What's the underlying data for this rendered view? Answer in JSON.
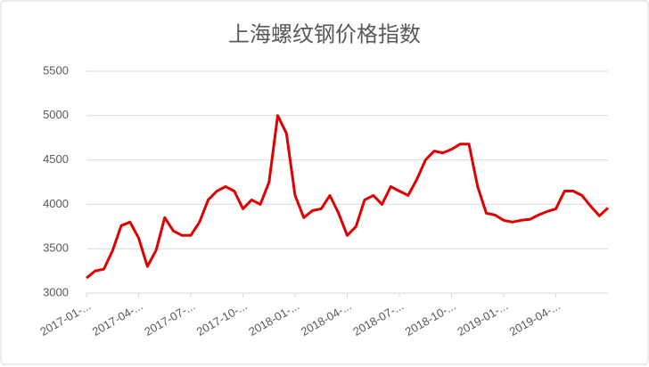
{
  "chart_data": {
    "type": "line",
    "title": "上海螺纹钢价格指数",
    "categories": [
      "2017-01-...",
      null,
      null,
      null,
      null,
      null,
      "2017-04-...",
      null,
      null,
      null,
      null,
      null,
      "2017-07-...",
      null,
      null,
      null,
      null,
      null,
      "2017-10-...",
      null,
      null,
      null,
      null,
      null,
      "2018-01-...",
      null,
      null,
      null,
      null,
      null,
      "2018-04-...",
      null,
      null,
      null,
      null,
      null,
      "2018-07-...",
      null,
      null,
      null,
      null,
      null,
      "2018-10-...",
      null,
      null,
      null,
      null,
      null,
      "2019-01-...",
      null,
      null,
      null,
      null,
      null,
      "2019-04-...",
      null,
      null,
      null,
      null,
      null,
      null
    ],
    "series": [
      {
        "name": "上海螺纹钢价格指数",
        "color": "#e00000",
        "values": [
          3170,
          3250,
          3270,
          3480,
          3760,
          3800,
          3620,
          3300,
          3480,
          3850,
          3700,
          3650,
          3650,
          3800,
          4050,
          4150,
          4200,
          4150,
          3950,
          4050,
          4000,
          4250,
          5000,
          4800,
          4100,
          3850,
          3930,
          3950,
          4100,
          3900,
          3650,
          3750,
          4050,
          4100,
          4000,
          4200,
          4150,
          4100,
          4280,
          4500,
          4600,
          4580,
          4620,
          4680,
          4680,
          4200,
          3900,
          3880,
          3820,
          3800,
          3820,
          3830,
          3880,
          3920,
          3950,
          4150,
          4150,
          4100,
          3980,
          3870,
          3960
        ]
      }
    ],
    "ylim": [
      3000,
      5500
    ],
    "yticks": [
      3000,
      3500,
      4000,
      4500,
      5000,
      5500
    ],
    "grid": true
  }
}
